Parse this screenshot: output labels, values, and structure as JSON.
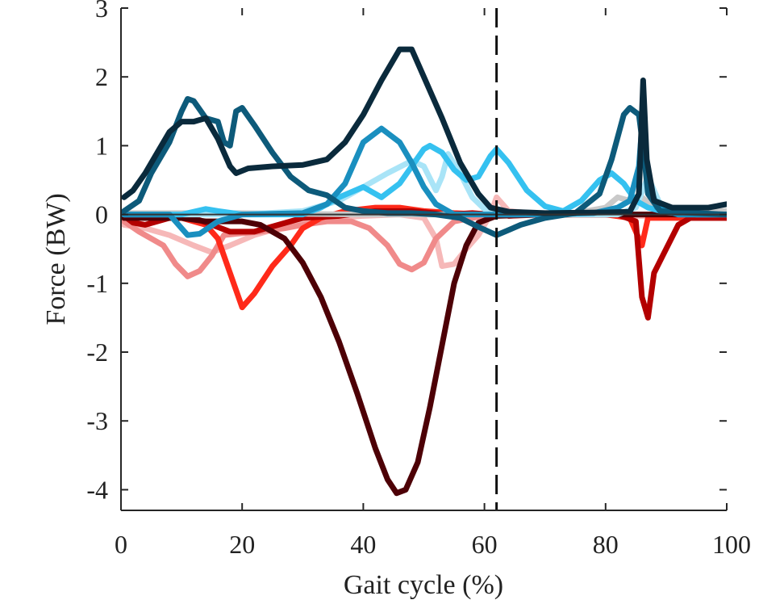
{
  "chart_data": {
    "type": "line",
    "title": "",
    "xlabel": "Gait cycle (%)",
    "ylabel": "Force (BW)",
    "xlim": [
      0,
      100
    ],
    "ylim": [
      -4.3,
      3
    ],
    "xticks": [
      0,
      20,
      40,
      60,
      80,
      100
    ],
    "yticks": [
      3,
      2,
      1,
      0,
      -1,
      -2,
      -3,
      -4
    ],
    "grid": false,
    "zero_line": 0,
    "vertical_marker": {
      "x": 62,
      "style": "dashed",
      "color": "#111111"
    },
    "series": [
      {
        "color": "#0a2a3c",
        "values": [
          [
            0.5,
            0.25
          ],
          [
            2,
            0.35
          ],
          [
            4,
            0.6
          ],
          [
            6,
            0.9
          ],
          [
            8,
            1.2
          ],
          [
            10,
            1.35
          ],
          [
            12,
            1.35
          ],
          [
            14,
            1.4
          ],
          [
            16,
            1.1
          ],
          [
            18,
            0.7
          ],
          [
            19,
            0.6
          ],
          [
            21,
            0.67
          ],
          [
            25,
            0.7
          ],
          [
            30,
            0.72
          ],
          [
            34,
            0.8
          ],
          [
            37,
            1.05
          ],
          [
            40,
            1.45
          ],
          [
            43,
            1.95
          ],
          [
            46,
            2.4
          ],
          [
            48,
            2.4
          ],
          [
            50,
            2.0
          ],
          [
            53,
            1.4
          ],
          [
            56,
            0.75
          ],
          [
            59,
            0.3
          ],
          [
            61,
            0.1
          ],
          [
            64,
            0.04
          ],
          [
            70,
            0.02
          ],
          [
            80,
            0.03
          ],
          [
            84,
            0.04
          ],
          [
            85.5,
            0.3
          ],
          [
            86.2,
            1.95
          ],
          [
            86.8,
            0.8
          ],
          [
            88,
            0.2
          ],
          [
            91,
            0.1
          ],
          [
            94,
            0.1
          ],
          [
            97,
            0.1
          ],
          [
            100,
            0.15
          ]
        ]
      },
      {
        "color": "#0d5a7a",
        "values": [
          [
            0.5,
            0.05
          ],
          [
            3,
            0.2
          ],
          [
            5,
            0.6
          ],
          [
            8,
            1.05
          ],
          [
            10,
            1.5
          ],
          [
            11,
            1.68
          ],
          [
            12,
            1.65
          ],
          [
            14,
            1.4
          ],
          [
            16,
            1.35
          ],
          [
            17,
            1.05
          ],
          [
            18,
            1.0
          ],
          [
            19,
            1.5
          ],
          [
            20,
            1.55
          ],
          [
            22,
            1.3
          ],
          [
            25,
            0.9
          ],
          [
            28,
            0.55
          ],
          [
            31,
            0.35
          ],
          [
            34,
            0.28
          ],
          [
            37,
            0.1
          ],
          [
            40,
            0.05
          ],
          [
            44,
            0.02
          ],
          [
            48,
            0.02
          ],
          [
            52,
            0.0
          ],
          [
            56,
            -0.05
          ],
          [
            59,
            -0.18
          ],
          [
            62,
            -0.3
          ],
          [
            66,
            -0.15
          ],
          [
            70,
            -0.05
          ],
          [
            75,
            0.02
          ],
          [
            79,
            0.3
          ],
          [
            81,
            0.8
          ],
          [
            83,
            1.45
          ],
          [
            84,
            1.55
          ],
          [
            85.5,
            1.45
          ],
          [
            86.3,
            0.9
          ],
          [
            87,
            0.3
          ],
          [
            89,
            0.05
          ],
          [
            95,
            0.02
          ],
          [
            100,
            0.0
          ]
        ]
      },
      {
        "color": "#1a8fbf",
        "values": [
          [
            0.5,
            0.0
          ],
          [
            8,
            0.0
          ],
          [
            10,
            -0.2
          ],
          [
            11,
            -0.3
          ],
          [
            13,
            -0.28
          ],
          [
            16,
            -0.1
          ],
          [
            20,
            0.0
          ],
          [
            30,
            0.02
          ],
          [
            34,
            0.15
          ],
          [
            37,
            0.45
          ],
          [
            40,
            1.05
          ],
          [
            43,
            1.25
          ],
          [
            46,
            1.05
          ],
          [
            48,
            0.75
          ],
          [
            50,
            0.4
          ],
          [
            52,
            0.15
          ],
          [
            55,
            0.0
          ],
          [
            60,
            0.0
          ],
          [
            70,
            0.0
          ],
          [
            78,
            0.02
          ],
          [
            82,
            0.1
          ],
          [
            84,
            0.2
          ],
          [
            85.5,
            0.7
          ],
          [
            86.2,
            1.5
          ],
          [
            87,
            0.5
          ],
          [
            88.5,
            0.1
          ],
          [
            92,
            0.0
          ],
          [
            100,
            0.0
          ]
        ]
      },
      {
        "color": "#35c1f0",
        "values": [
          [
            0.5,
            0.0
          ],
          [
            10,
            0.0
          ],
          [
            14,
            0.08
          ],
          [
            16,
            0.05
          ],
          [
            20,
            0.0
          ],
          [
            30,
            0.0
          ],
          [
            33,
            0.1
          ],
          [
            36,
            0.25
          ],
          [
            40,
            0.4
          ],
          [
            43,
            0.25
          ],
          [
            46,
            0.45
          ],
          [
            48,
            0.7
          ],
          [
            50,
            0.95
          ],
          [
            51,
            1.0
          ],
          [
            53,
            0.9
          ],
          [
            55,
            0.65
          ],
          [
            57,
            0.5
          ],
          [
            59,
            0.55
          ],
          [
            61,
            0.85
          ],
          [
            62,
            0.95
          ],
          [
            64,
            0.75
          ],
          [
            67,
            0.35
          ],
          [
            70,
            0.12
          ],
          [
            73,
            0.05
          ],
          [
            76,
            0.2
          ],
          [
            79,
            0.5
          ],
          [
            81,
            0.6
          ],
          [
            83,
            0.45
          ],
          [
            85,
            0.2
          ],
          [
            87,
            0.1
          ],
          [
            90,
            0.03
          ],
          [
            95,
            0.0
          ],
          [
            100,
            0.0
          ]
        ]
      },
      {
        "color": "#a9e4f7",
        "values": [
          [
            0.5,
            0.0
          ],
          [
            20,
            0.0
          ],
          [
            30,
            0.05
          ],
          [
            36,
            0.2
          ],
          [
            40,
            0.4
          ],
          [
            44,
            0.6
          ],
          [
            48,
            0.78
          ],
          [
            50,
            0.7
          ],
          [
            52,
            0.35
          ],
          [
            53,
            0.55
          ],
          [
            54,
            0.88
          ],
          [
            56,
            0.6
          ],
          [
            58,
            0.25
          ],
          [
            60,
            0.08
          ],
          [
            62,
            0.0
          ],
          [
            70,
            0.0
          ],
          [
            82,
            0.0
          ],
          [
            85,
            0.1
          ],
          [
            87,
            0.55
          ],
          [
            89,
            0.15
          ],
          [
            92,
            0.0
          ],
          [
            100,
            0.0
          ]
        ]
      },
      {
        "color": "#c9c9c9",
        "values": [
          [
            0.5,
            0.02
          ],
          [
            20,
            0.02
          ],
          [
            40,
            0.0
          ],
          [
            60,
            0.0
          ],
          [
            75,
            0.02
          ],
          [
            80,
            0.1
          ],
          [
            82,
            0.25
          ],
          [
            84,
            0.2
          ],
          [
            86,
            0.25
          ],
          [
            88,
            0.1
          ],
          [
            92,
            0.05
          ],
          [
            100,
            0.05
          ]
        ]
      },
      {
        "color": "#4d0006",
        "values": [
          [
            0.5,
            -0.05
          ],
          [
            10,
            -0.05
          ],
          [
            14,
            -0.1
          ],
          [
            17,
            -0.1
          ],
          [
            20,
            -0.1
          ],
          [
            23,
            -0.15
          ],
          [
            27,
            -0.35
          ],
          [
            30,
            -0.7
          ],
          [
            33,
            -1.2
          ],
          [
            36,
            -1.85
          ],
          [
            39,
            -2.6
          ],
          [
            42,
            -3.4
          ],
          [
            44,
            -3.85
          ],
          [
            45.5,
            -4.05
          ],
          [
            47,
            -4.0
          ],
          [
            49,
            -3.6
          ],
          [
            51,
            -2.8
          ],
          [
            53,
            -1.9
          ],
          [
            55,
            -1.0
          ],
          [
            57,
            -0.45
          ],
          [
            59,
            -0.12
          ],
          [
            62,
            -0.02
          ],
          [
            70,
            0.0
          ],
          [
            100,
            0.0
          ]
        ]
      },
      {
        "color": "#b30000",
        "values": [
          [
            0.5,
            -0.02
          ],
          [
            2,
            -0.12
          ],
          [
            4,
            -0.15
          ],
          [
            8,
            -0.05
          ],
          [
            12,
            -0.05
          ],
          [
            15,
            -0.15
          ],
          [
            18,
            -0.25
          ],
          [
            22,
            -0.25
          ],
          [
            26,
            -0.15
          ],
          [
            30,
            -0.05
          ],
          [
            36,
            -0.02
          ],
          [
            42,
            0.05
          ],
          [
            48,
            0.05
          ],
          [
            54,
            0.0
          ],
          [
            58,
            0.02
          ],
          [
            61,
            0.0
          ],
          [
            62,
            0.05
          ],
          [
            64,
            -0.02
          ],
          [
            70,
            0.0
          ],
          [
            82,
            0.0
          ],
          [
            85,
            -0.1
          ],
          [
            86,
            -1.2
          ],
          [
            87,
            -1.5
          ],
          [
            88,
            -0.85
          ],
          [
            90,
            -0.5
          ],
          [
            92,
            -0.15
          ],
          [
            94,
            -0.05
          ],
          [
            100,
            -0.05
          ]
        ]
      },
      {
        "color": "#ff2a1a",
        "values": [
          [
            0.5,
            -0.05
          ],
          [
            10,
            -0.05
          ],
          [
            14,
            -0.15
          ],
          [
            16,
            -0.35
          ],
          [
            18,
            -0.85
          ],
          [
            20,
            -1.35
          ],
          [
            22,
            -1.15
          ],
          [
            25,
            -0.75
          ],
          [
            28,
            -0.45
          ],
          [
            30,
            -0.2
          ],
          [
            33,
            -0.05
          ],
          [
            37,
            0.05
          ],
          [
            42,
            0.1
          ],
          [
            46,
            0.1
          ],
          [
            50,
            0.05
          ],
          [
            55,
            0.02
          ],
          [
            60,
            0.0
          ],
          [
            70,
            0.0
          ],
          [
            80,
            0.0
          ],
          [
            84,
            -0.05
          ],
          [
            86,
            -0.45
          ],
          [
            87,
            -0.05
          ],
          [
            90,
            -0.05
          ],
          [
            100,
            -0.05
          ]
        ]
      },
      {
        "color": "#f08a8a",
        "values": [
          [
            0.5,
            -0.1
          ],
          [
            3,
            -0.25
          ],
          [
            5,
            -0.35
          ],
          [
            7,
            -0.45
          ],
          [
            9,
            -0.72
          ],
          [
            11,
            -0.9
          ],
          [
            13,
            -0.82
          ],
          [
            15,
            -0.6
          ],
          [
            17,
            -0.3
          ],
          [
            19,
            -0.28
          ],
          [
            23,
            -0.25
          ],
          [
            27,
            -0.2
          ],
          [
            30,
            -0.15
          ],
          [
            34,
            -0.1
          ],
          [
            38,
            -0.1
          ],
          [
            41,
            -0.2
          ],
          [
            44,
            -0.45
          ],
          [
            46,
            -0.72
          ],
          [
            48,
            -0.8
          ],
          [
            50,
            -0.7
          ],
          [
            52,
            -0.35
          ],
          [
            55,
            -0.1
          ],
          [
            58,
            -0.05
          ],
          [
            60,
            -0.02
          ],
          [
            62,
            0.0
          ],
          [
            70,
            0.0
          ],
          [
            100,
            0.0
          ]
        ]
      },
      {
        "color": "#f6b8b8",
        "values": [
          [
            0.5,
            -0.15
          ],
          [
            4,
            -0.2
          ],
          [
            8,
            -0.3
          ],
          [
            12,
            -0.45
          ],
          [
            15,
            -0.55
          ],
          [
            18,
            -0.45
          ],
          [
            22,
            -0.3
          ],
          [
            26,
            -0.2
          ],
          [
            30,
            -0.1
          ],
          [
            36,
            -0.05
          ],
          [
            40,
            -0.02
          ],
          [
            46,
            0.0
          ],
          [
            50,
            -0.05
          ],
          [
            52,
            -0.35
          ],
          [
            53,
            -0.75
          ],
          [
            55,
            -0.72
          ],
          [
            57,
            -0.5
          ],
          [
            59,
            -0.3
          ],
          [
            61,
            0.0
          ],
          [
            62,
            0.25
          ],
          [
            64,
            0.05
          ],
          [
            70,
            0.0
          ],
          [
            80,
            0.0
          ],
          [
            85,
            -0.02
          ],
          [
            100,
            -0.02
          ]
        ]
      }
    ]
  }
}
